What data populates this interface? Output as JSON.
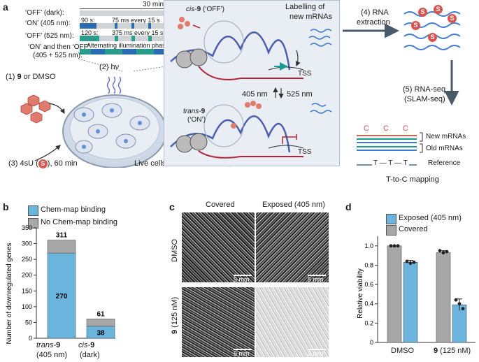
{
  "panel_a": {
    "letter": "a",
    "timeline": {
      "header_duration": "30 min",
      "rows": [
        {
          "label": "‘OFF’ (dark):"
        },
        {
          "label": "‘ON’ (405 nm):",
          "pre": "90 s:",
          "text": "75 ms every 15 s"
        },
        {
          "label": "‘OFF’ (525 nm):",
          "pre": "120 s:",
          "text": "375 ms every 15 s"
        },
        {
          "label_line1": "‘ON’ and then ‘OFF’",
          "label_line2": "(405 + 525 nm):",
          "text": "Alternating illumination phases"
        }
      ]
    },
    "step1_prefix": "(1) ",
    "step1_compound": "9",
    "step1_suffix": " or DMSO",
    "step2": "(2) hν",
    "step3_prefix": "(3) 4sU (",
    "step3_badge": "S",
    "step3_suffix": "), 60 min",
    "live_cells": "Live cells",
    "cis_label_prefix": "cis-",
    "cis_label_num": "9",
    "cis_label_suffix": " (‘OFF’)",
    "labelling_line1": "Labelling of",
    "labelling_line2": "new mRNAs",
    "tss_top": "TSS",
    "wl_405": "405 nm",
    "wl_525": "525 nm",
    "trans_label_prefix": "trans-",
    "trans_label_num": "9",
    "trans_label_line2": "(‘ON’)",
    "tss_bottom": "TSS",
    "step4_line1": "(4) RNA",
    "step4_line2": "extraction",
    "step5_line1": "(5) RNA-seq",
    "step5_line2": "(SLAM-seq)",
    "mapping_c": "C",
    "new_mrnas": "New mRNAs",
    "old_mrnas": "Old mRNAs",
    "reference_seq": "T — T — T",
    "reference": "Reference",
    "t_to_c": "T-to-C mapping"
  },
  "panel_b": {
    "letter": "b",
    "legend": [
      "Chem-map binding",
      "No Chem-map binding"
    ],
    "colors": {
      "binding": "#6ab4de",
      "no_binding": "#a7a7a7"
    },
    "ylabel": "Number of downregulated genes"
  },
  "panel_c": {
    "letter": "c",
    "col_headers": [
      "Covered",
      "Exposed (405 nm)"
    ],
    "row_label_1": "DMSO",
    "row_label_2_num": "9",
    "row_label_2_rest": " (125 nM)",
    "scale_bar": "5 mm"
  },
  "panel_d": {
    "letter": "d",
    "legend": [
      "Exposed (405 nm)",
      "Covered"
    ],
    "colors": {
      "exposed": "#6ab4de",
      "covered": "#a7a7a7"
    },
    "ylabel": "Relative viability"
  },
  "chart_data": [
    {
      "type": "bar",
      "stacked": true,
      "categories": [
        {
          "name_prefix": "trans-",
          "name_num": "9",
          "sub": "(405 nm)"
        },
        {
          "name_prefix": "cis-",
          "name_num": "9",
          "sub": "(dark)"
        }
      ],
      "series": [
        {
          "name": "Chem-map binding",
          "values": [
            270,
            38
          ]
        },
        {
          "name": "No Chem-map binding",
          "values": [
            41,
            23
          ]
        }
      ],
      "totals": [
        311,
        61
      ],
      "ylabel": "Number of downregulated genes",
      "ylim": [
        0,
        350
      ],
      "yticks": [
        0,
        50,
        100,
        150,
        200,
        250,
        300,
        350
      ]
    },
    {
      "type": "bar",
      "categories": [
        {
          "name": "DMSO"
        },
        {
          "name_num": "9",
          "name_rest": " (125 nM)"
        }
      ],
      "series": [
        {
          "name": "Covered",
          "values": [
            1.0,
            0.93
          ],
          "points": [
            [
              1.0,
              1.0,
              1.0
            ],
            [
              0.95,
              0.93,
              0.94
            ]
          ]
        },
        {
          "name": "Exposed (405 nm)",
          "values": [
            0.83,
            0.39
          ],
          "points": [
            [
              0.84,
              0.82,
              0.83
            ],
            [
              0.44,
              0.4,
              0.35
            ]
          ]
        }
      ],
      "errors": {
        "Covered": [
          0.0,
          0.02
        ],
        "Exposed (405 nm)": [
          0.02,
          0.06
        ]
      },
      "ylabel": "Relative viability",
      "ylim": [
        0,
        1.1
      ],
      "yticks": [
        "0",
        "0.2",
        "0.4",
        "0.6",
        "0.8",
        "1.0"
      ]
    }
  ]
}
